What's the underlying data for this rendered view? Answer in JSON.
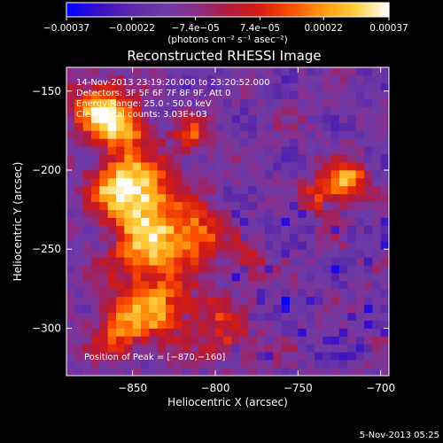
{
  "chart_data": {
    "type": "heatmap",
    "title": "Reconstructed RHESSI Image",
    "xlabel": "Heliocentric X (arcsec)",
    "ylabel": "Heliocentric Y (arcsec)",
    "xlim": [
      -890,
      -695
    ],
    "ylim": [
      -330,
      -135
    ],
    "x_ticks": [
      {
        "value": -850,
        "label": "−850"
      },
      {
        "value": -800,
        "label": "−800"
      },
      {
        "value": -750,
        "label": "−750"
      },
      {
        "value": -700,
        "label": "−700"
      }
    ],
    "y_ticks": [
      {
        "value": -150,
        "label": "−150"
      },
      {
        "value": -200,
        "label": "−200"
      },
      {
        "value": -250,
        "label": "−250"
      },
      {
        "value": -300,
        "label": "−300"
      }
    ],
    "colorbar": {
      "range": [
        -0.00037,
        0.00037
      ],
      "ticks": [
        {
          "value": -0.00037,
          "label": "−0.00037"
        },
        {
          "value": -0.00022,
          "label": "−0.00022"
        },
        {
          "value": -7.4e-05,
          "label": "−7.4e−05"
        },
        {
          "value": 7.4e-05,
          "label": "7.4e−05"
        },
        {
          "value": 0.00022,
          "label": "0.00022"
        },
        {
          "value": 0.00037,
          "label": "0.00037"
        }
      ],
      "unit_label": "(photons cm⁻² s⁻¹ asec⁻²)"
    },
    "hot_regions": [
      {
        "x": -870,
        "y": -160,
        "sx": 12,
        "sy": 12,
        "amp": 1.0
      },
      {
        "x": -855,
        "y": -175,
        "sx": 10,
        "sy": 10,
        "amp": 0.8
      },
      {
        "x": -842,
        "y": -215,
        "sx": 14,
        "sy": 16,
        "amp": 0.9
      },
      {
        "x": -860,
        "y": -210,
        "sx": 12,
        "sy": 12,
        "amp": 0.8
      },
      {
        "x": -840,
        "y": -250,
        "sx": 16,
        "sy": 16,
        "amp": 0.9
      },
      {
        "x": -810,
        "y": -240,
        "sx": 12,
        "sy": 12,
        "amp": 0.7
      },
      {
        "x": -835,
        "y": -290,
        "sx": 14,
        "sy": 14,
        "amp": 0.8
      },
      {
        "x": -860,
        "y": -300,
        "sx": 10,
        "sy": 12,
        "amp": 0.7
      },
      {
        "x": -815,
        "y": -178,
        "sx": 7,
        "sy": 7,
        "amp": 0.6
      },
      {
        "x": -720,
        "y": -205,
        "sx": 8,
        "sy": 8,
        "amp": 0.9
      },
      {
        "x": -735,
        "y": -215,
        "sx": 8,
        "sy": 8,
        "amp": 0.7
      },
      {
        "x": -800,
        "y": -290,
        "sx": 9,
        "sy": 9,
        "amp": 0.5
      },
      {
        "x": -780,
        "y": -260,
        "sx": 8,
        "sy": 8,
        "amp": 0.4
      },
      {
        "x": -790,
        "y": -310,
        "sx": 10,
        "sy": 8,
        "amp": 0.5
      }
    ],
    "annotations": [
      "14-Nov-2013 23:19:20.000 to 23:20:52.000",
      "Detectors: 3F 5F 6F 7F 8F 9F, Att 0",
      "Energy Range: 25.0 - 50.0 keV",
      "Clean    Total counts: 3.03E+03"
    ],
    "peak_label": "Position of Peak = [−870,−160]",
    "peak": {
      "x": -870,
      "y": -160
    }
  },
  "footer": {
    "timestamp": "5-Nov-2013 05:25"
  },
  "colors": {
    "background": "#000000",
    "foreground": "#ffffff",
    "colormap": [
      "#0000ff",
      "#3a10c8",
      "#5a28a8",
      "#6e3aa8",
      "#8a2f8a",
      "#b11a40",
      "#d61c10",
      "#ff5000",
      "#ff9a10",
      "#ffd040",
      "#ffffff"
    ]
  }
}
